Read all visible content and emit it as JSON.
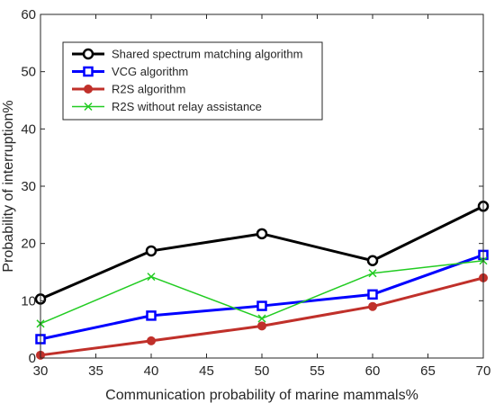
{
  "chart_data": {
    "type": "line",
    "title": "",
    "xlabel": "Communication probability of marine mammals%",
    "ylabel": "Probability of interruption%",
    "xlim": [
      30,
      70
    ],
    "ylim": [
      0,
      60
    ],
    "xticks": [
      30,
      35,
      40,
      45,
      50,
      55,
      60,
      65,
      70
    ],
    "yticks": [
      0,
      10,
      20,
      30,
      40,
      50,
      60
    ],
    "grid": false,
    "legend_position": "top-left",
    "x": [
      30,
      40,
      50,
      60,
      70
    ],
    "series": [
      {
        "name": "Shared spectrum matching algorithm",
        "values": [
          10.3,
          18.7,
          21.7,
          17.0,
          26.5
        ],
        "color": "#000000",
        "marker": "circle"
      },
      {
        "name": "VCG algorithm",
        "values": [
          3.3,
          7.4,
          9.1,
          11.1,
          18.0
        ],
        "color": "#0000ff",
        "marker": "square"
      },
      {
        "name": "R2S algorithm",
        "values": [
          0.5,
          3.0,
          5.6,
          9.0,
          14.0
        ],
        "color": "#c0302a",
        "marker": "filled-circle"
      },
      {
        "name": "R2S without relay assistance",
        "values": [
          6.0,
          14.2,
          6.9,
          14.8,
          17.0
        ],
        "color": "#22cc22",
        "marker": "x"
      }
    ]
  }
}
